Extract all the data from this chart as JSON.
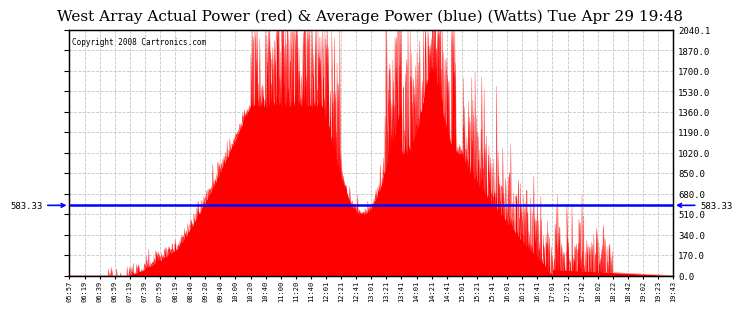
{
  "title": "West Array Actual Power (red) & Average Power (blue) (Watts) Tue Apr 29 19:48",
  "copyright": "Copyright 2008 Cartronics.com",
  "avg_power": 583.33,
  "y_max": 2040.1,
  "y_min": 0.0,
  "yticks": [
    0.0,
    170.0,
    340.0,
    510.0,
    680.0,
    850.0,
    1020.0,
    1190.0,
    1360.0,
    1530.0,
    1700.0,
    1870.0,
    2040.1
  ],
  "background_color": "#ffffff",
  "plot_bg_color": "#ffffff",
  "grid_color": "#c0c0c0",
  "fill_color": "#ff0000",
  "avg_line_color": "#0000ff",
  "title_fontsize": 11,
  "x_tick_labels": [
    "05:57",
    "06:19",
    "06:39",
    "06:59",
    "07:19",
    "07:39",
    "07:59",
    "08:19",
    "08:40",
    "09:20",
    "09:40",
    "10:00",
    "10:20",
    "10:40",
    "11:00",
    "11:20",
    "11:40",
    "12:01",
    "12:21",
    "12:41",
    "13:01",
    "13:21",
    "13:41",
    "14:01",
    "14:21",
    "14:41",
    "15:01",
    "15:21",
    "15:41",
    "16:01",
    "16:21",
    "16:41",
    "17:01",
    "17:21",
    "17:42",
    "18:02",
    "18:22",
    "18:42",
    "19:02",
    "19:23",
    "19:43"
  ]
}
